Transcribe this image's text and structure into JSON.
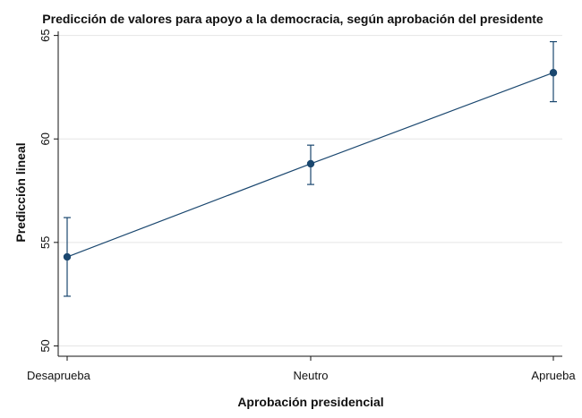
{
  "chart_data": {
    "type": "line",
    "title": "Predicción de valores para apoyo a la democracia, según aprobación del presidente",
    "xlabel": "Aprobación presidencial",
    "ylabel": "Predicción lineal",
    "categories": [
      "Desaprueba",
      "Neutro",
      "Aprueba"
    ],
    "ylim": [
      49.5,
      65.2
    ],
    "yticks": [
      50,
      55,
      60,
      65
    ],
    "series": [
      {
        "values": [
          54.3,
          58.8,
          63.2
        ],
        "ci_low": [
          52.4,
          57.8,
          61.8
        ],
        "ci_high": [
          56.2,
          59.7,
          64.7
        ]
      }
    ],
    "grid": true,
    "legend": "none"
  },
  "colors": {
    "series": "#1a476f",
    "grid": "#e5e5e5",
    "axis": "#111111"
  }
}
